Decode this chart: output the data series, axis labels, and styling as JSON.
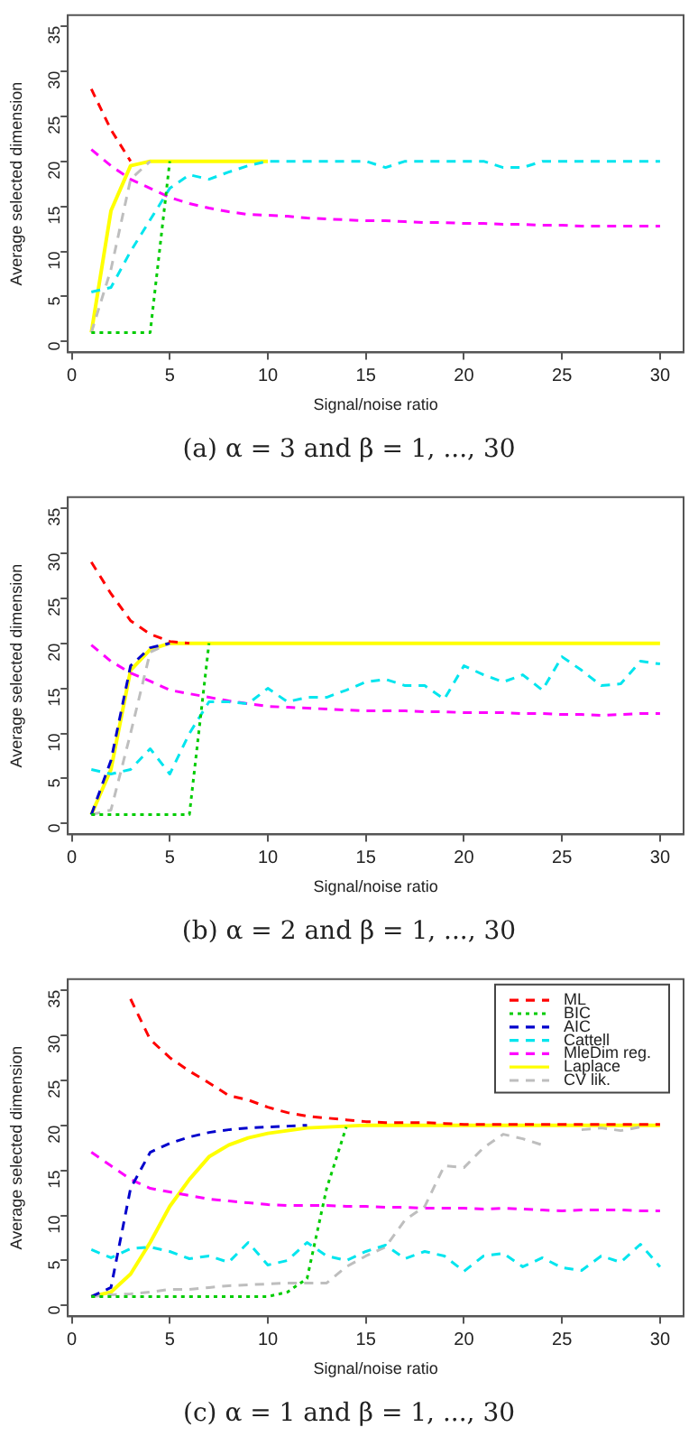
{
  "chart_data": [
    {
      "type": "line",
      "title": "(a) α = 3 and β = 1, ..., 30",
      "xlabel": "Signal/noise ratio",
      "ylabel": "Average selected dimension",
      "x": [
        1,
        2,
        3,
        4,
        5,
        6,
        7,
        8,
        9,
        10,
        11,
        12,
        13,
        14,
        15,
        16,
        17,
        18,
        19,
        20,
        21,
        22,
        23,
        24,
        25,
        26,
        27,
        28,
        29,
        30
      ],
      "xlim": [
        -0.2,
        31.2
      ],
      "xticks": [
        0,
        5,
        10,
        15,
        20,
        25,
        30
      ],
      "ylim": [
        -1.2,
        36.2
      ],
      "yticks": [
        0,
        5,
        10,
        15,
        20,
        25,
        30,
        35
      ],
      "grid": false,
      "legend": false,
      "marker": "none",
      "series": [
        {
          "color": "#ff0000",
          "line_style": "dashed",
          "values": [
            28,
            23.5,
            20,
            null,
            null,
            null,
            null,
            null,
            null,
            null,
            null,
            null,
            null,
            null,
            null,
            null,
            null,
            null,
            null,
            null,
            null,
            null,
            null,
            null,
            null,
            null,
            null,
            null,
            null,
            null
          ]
        },
        {
          "color": "#00cc00",
          "line_style": "dotted",
          "values": [
            1,
            1,
            1,
            1,
            20,
            null,
            null,
            null,
            null,
            null,
            null,
            null,
            null,
            null,
            null,
            null,
            null,
            null,
            null,
            null,
            null,
            null,
            null,
            null,
            null,
            null,
            null,
            null,
            null,
            null
          ]
        },
        {
          "color": "#00e5ee",
          "line_style": "dashed",
          "values": [
            5.5,
            6,
            10,
            13.5,
            17,
            18.5,
            18,
            18.8,
            19.5,
            20,
            20,
            20,
            20,
            20,
            20,
            19.3,
            20,
            20,
            20,
            20,
            20,
            19.3,
            19.3,
            20,
            20,
            20,
            20,
            20,
            20,
            20
          ]
        },
        {
          "color": "#ff00ff",
          "line_style": "dashed",
          "values": [
            21.3,
            19.5,
            18,
            17,
            16,
            15.3,
            14.8,
            14.4,
            14.1,
            14,
            13.9,
            13.7,
            13.6,
            13.5,
            13.4,
            13.4,
            13.3,
            13.2,
            13.2,
            13.1,
            13.1,
            13,
            13,
            12.9,
            12.9,
            12.8,
            12.8,
            12.8,
            12.8,
            12.8
          ]
        },
        {
          "color": "#ffff00",
          "line_style": "solid",
          "values": [
            1,
            14.5,
            19.5,
            20,
            20,
            20,
            20,
            20,
            20,
            20,
            null,
            null,
            null,
            null,
            null,
            null,
            null,
            null,
            null,
            null,
            null,
            null,
            null,
            null,
            null,
            null,
            null,
            null,
            null,
            null
          ]
        },
        {
          "color": "#bebebe",
          "line_style": "dashed",
          "values": [
            1,
            8,
            18,
            20,
            null,
            null,
            null,
            null,
            null,
            null,
            null,
            null,
            null,
            null,
            null,
            null,
            null,
            null,
            null,
            null,
            null,
            null,
            null,
            null,
            null,
            null,
            null,
            null,
            null,
            null
          ]
        }
      ]
    },
    {
      "type": "line",
      "title": "(b) α = 2 and β = 1, ..., 30",
      "xlabel": "Signal/noise ratio",
      "ylabel": "Average selected dimension",
      "x": [
        1,
        2,
        3,
        4,
        5,
        6,
        7,
        8,
        9,
        10,
        11,
        12,
        13,
        14,
        15,
        16,
        17,
        18,
        19,
        20,
        21,
        22,
        23,
        24,
        25,
        26,
        27,
        28,
        29,
        30
      ],
      "xlim": [
        -0.2,
        31.2
      ],
      "xticks": [
        0,
        5,
        10,
        15,
        20,
        25,
        30
      ],
      "ylim": [
        -1.2,
        36.2
      ],
      "yticks": [
        0,
        5,
        10,
        15,
        20,
        25,
        30,
        35
      ],
      "grid": false,
      "legend": false,
      "marker": "none",
      "series": [
        {
          "color": "#ff0000",
          "line_style": "dashed",
          "values": [
            29,
            25.5,
            22.5,
            21,
            20.2,
            20,
            null,
            null,
            null,
            null,
            null,
            null,
            null,
            null,
            null,
            null,
            null,
            null,
            null,
            null,
            null,
            null,
            null,
            null,
            null,
            null,
            null,
            null,
            null,
            null
          ]
        },
        {
          "color": "#00cc00",
          "line_style": "dotted",
          "values": [
            1,
            1,
            1,
            1,
            1,
            1,
            20,
            null,
            null,
            null,
            null,
            null,
            null,
            null,
            null,
            null,
            null,
            null,
            null,
            null,
            null,
            null,
            null,
            null,
            null,
            null,
            null,
            null,
            null,
            null
          ]
        },
        {
          "color": "#0000cc",
          "line_style": "dashed",
          "values": [
            1,
            7,
            17.5,
            19.5,
            20,
            null,
            null,
            null,
            null,
            null,
            null,
            null,
            null,
            null,
            null,
            null,
            null,
            null,
            null,
            null,
            null,
            null,
            null,
            null,
            null,
            null,
            null,
            null,
            null,
            null
          ]
        },
        {
          "color": "#00e5ee",
          "line_style": "dashed",
          "values": [
            6,
            5.5,
            6,
            8.3,
            5.5,
            10,
            13.5,
            13.5,
            13.3,
            15,
            13.5,
            14,
            14,
            14.8,
            15.7,
            16,
            15.3,
            15.3,
            13.8,
            17.5,
            16.5,
            15.7,
            16.5,
            14.8,
            18.5,
            17,
            15.3,
            15.5,
            18,
            17.7
          ]
        },
        {
          "color": "#ff00ff",
          "line_style": "dashed",
          "values": [
            19.8,
            18,
            16.7,
            15.8,
            14.8,
            14.4,
            14,
            13.6,
            13.3,
            13,
            12.9,
            12.8,
            12.7,
            12.6,
            12.5,
            12.5,
            12.5,
            12.4,
            12.4,
            12.3,
            12.3,
            12.3,
            12.2,
            12.2,
            12.1,
            12.1,
            12,
            12.1,
            12.2,
            12.2
          ]
        },
        {
          "color": "#ffff00",
          "line_style": "solid",
          "values": [
            1,
            6,
            17,
            19.3,
            20,
            20,
            20,
            20,
            20,
            20,
            20,
            20,
            20,
            20,
            20,
            20,
            20,
            20,
            20,
            20,
            20,
            20,
            20,
            20,
            20,
            20,
            20,
            20,
            20,
            20
          ]
        },
        {
          "color": "#bebebe",
          "line_style": "dashed",
          "values": [
            1,
            1.5,
            10,
            19,
            20,
            null,
            null,
            null,
            null,
            null,
            null,
            null,
            null,
            null,
            null,
            null,
            null,
            null,
            null,
            null,
            null,
            null,
            null,
            null,
            null,
            null,
            null,
            null,
            null,
            null
          ]
        }
      ]
    },
    {
      "type": "line",
      "title": "(c) α = 1 and β = 1, ..., 30",
      "xlabel": "Signal/noise ratio",
      "ylabel": "Average selected dimension",
      "x": [
        1,
        2,
        3,
        4,
        5,
        6,
        7,
        8,
        9,
        10,
        11,
        12,
        13,
        14,
        15,
        16,
        17,
        18,
        19,
        20,
        21,
        22,
        23,
        24,
        25,
        26,
        27,
        28,
        29,
        30
      ],
      "xlim": [
        -0.2,
        31.2
      ],
      "xticks": [
        0,
        5,
        10,
        15,
        20,
        25,
        30
      ],
      "ylim": [
        -1.2,
        36.2
      ],
      "yticks": [
        0,
        5,
        10,
        15,
        20,
        25,
        30,
        35
      ],
      "grid": false,
      "legend": "top right",
      "marker": "none",
      "series": [
        {
          "name": "ML",
          "color": "#ff0000",
          "line_style": "dashed",
          "values": [
            null,
            null,
            34,
            29.5,
            27.5,
            26,
            24.7,
            23.3,
            22.8,
            22,
            21.4,
            21,
            20.8,
            20.6,
            20.4,
            20.3,
            20.3,
            20.3,
            20.2,
            20.1,
            20.1,
            20.1,
            20.1,
            20.1,
            20.1,
            20.1,
            20.1,
            20.1,
            20.1,
            20.1
          ]
        },
        {
          "name": "BIC",
          "color": "#00cc00",
          "line_style": "dotted",
          "values": [
            1,
            1,
            1,
            1,
            1,
            1,
            1,
            1,
            1,
            1,
            1.5,
            3,
            13,
            19.8,
            null,
            null,
            null,
            null,
            null,
            null,
            null,
            null,
            null,
            null,
            null,
            null,
            null,
            null,
            null,
            null
          ]
        },
        {
          "name": "AIC",
          "color": "#0000cc",
          "line_style": "dashed",
          "values": [
            1,
            2,
            13,
            17,
            18,
            18.7,
            19.2,
            19.5,
            19.7,
            19.8,
            19.9,
            20,
            null,
            null,
            null,
            null,
            null,
            null,
            null,
            null,
            null,
            null,
            null,
            null,
            null,
            null,
            null,
            null,
            null,
            null
          ]
        },
        {
          "name": "Cattell",
          "color": "#00e5ee",
          "line_style": "dashed",
          "values": [
            6.2,
            5.3,
            6.3,
            6.5,
            6,
            5.2,
            5.5,
            4.8,
            7,
            4.5,
            5,
            7,
            5.5,
            5,
            6,
            6.7,
            5.2,
            6,
            5.5,
            3.8,
            5.5,
            5.8,
            4.3,
            5.3,
            4.2,
            3.9,
            5.5,
            4.8,
            6.8,
            4.3
          ]
        },
        {
          "name": "MleDim reg.",
          "color": "#ff00ff",
          "line_style": "dashed",
          "values": [
            17,
            15.5,
            14,
            13,
            12.6,
            12.2,
            11.8,
            11.6,
            11.4,
            11.2,
            11.1,
            11.1,
            11.1,
            11,
            11,
            10.9,
            10.9,
            10.8,
            10.8,
            10.8,
            10.7,
            10.8,
            10.7,
            10.6,
            10.5,
            10.6,
            10.6,
            10.6,
            10.5,
            10.5
          ]
        },
        {
          "name": "Laplace",
          "color": "#ffff00",
          "line_style": "solid",
          "values": [
            1,
            1.5,
            3.5,
            7,
            11,
            14,
            16.5,
            17.8,
            18.6,
            19.1,
            19.4,
            19.7,
            19.8,
            19.9,
            20,
            20,
            20,
            20,
            20,
            20,
            20,
            20,
            20,
            20,
            20,
            20,
            20,
            20,
            20,
            20
          ]
        },
        {
          "name": "CV lik.",
          "color": "#bebebe",
          "line_style": "dashed",
          "values": [
            1,
            1.2,
            1.3,
            1.5,
            1.8,
            1.8,
            2,
            2.2,
            2.3,
            2.4,
            2.5,
            2.5,
            2.5,
            4.3,
            5.5,
            6.5,
            9.5,
            11,
            15.5,
            15.3,
            17.5,
            19,
            18.5,
            17.8,
            null,
            19.5,
            19.7,
            19.4,
            19.8,
            null
          ]
        }
      ]
    }
  ]
}
